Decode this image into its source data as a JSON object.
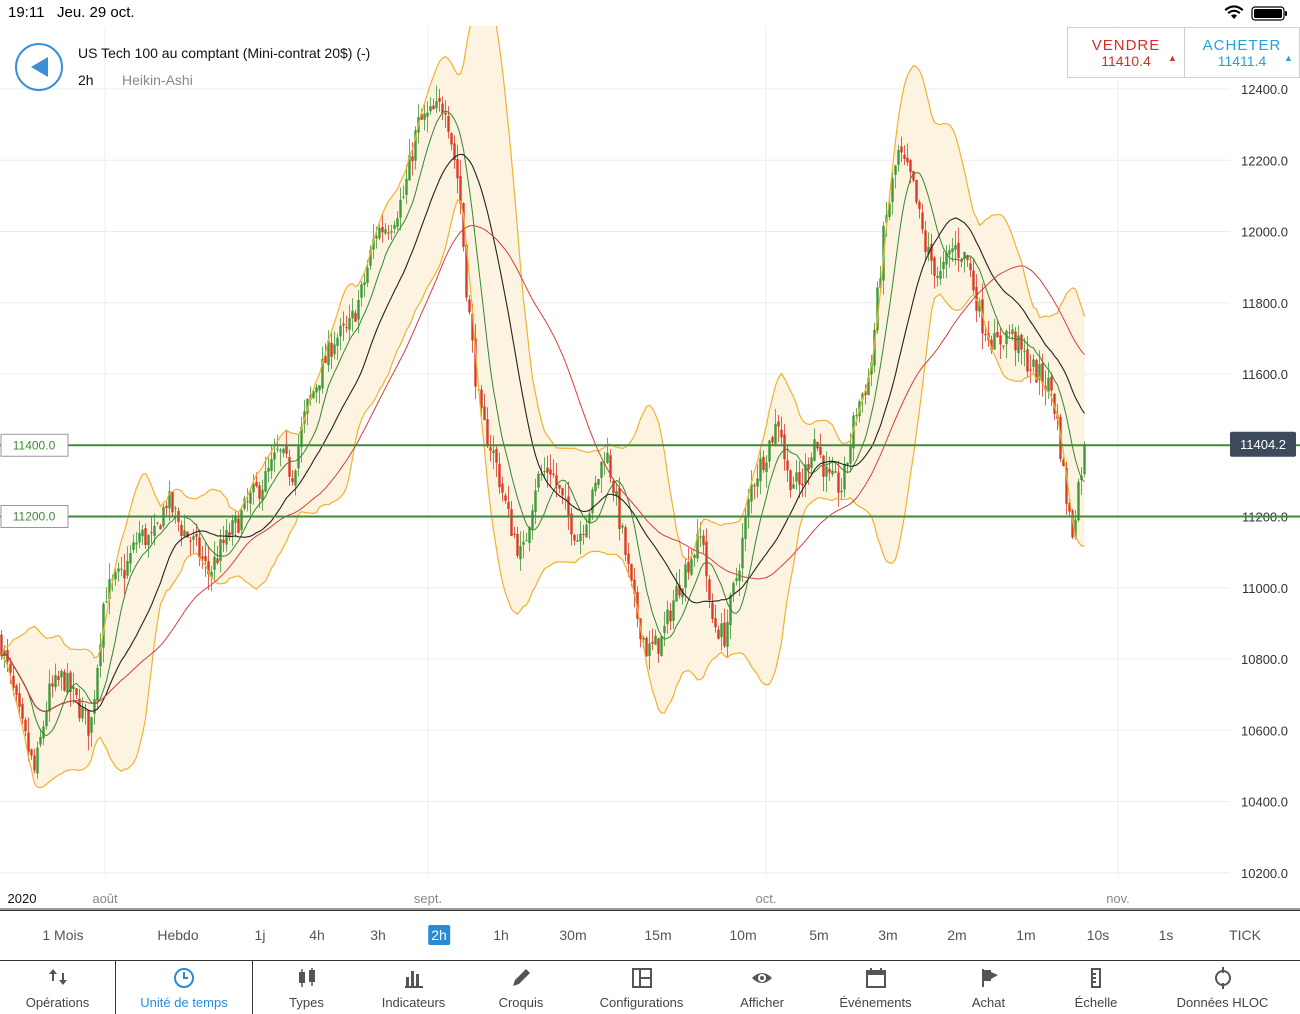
{
  "status": {
    "time": "19:11",
    "date": "Jeu. 29 oct."
  },
  "header": {
    "instrument": "US Tech 100 au comptant (Mini-contrat 20$) (-)",
    "timeframe": "2h",
    "chart_type": "Heikin-Ashi"
  },
  "trade": {
    "sell_label": "VENDRE",
    "sell_price": "11410.4",
    "buy_label": "ACHETER",
    "buy_price": "11411.4"
  },
  "colors": {
    "accent": "#2a8ad6",
    "sell": "#d22f27",
    "buy": "#2a9fd8",
    "up": "#3f9a3a",
    "down": "#d93a26",
    "band": "#f2b131"
  },
  "chart_data": {
    "type": "line",
    "ylim": [
      10100,
      12560
    ],
    "y_ticks": [
      "12400.0",
      "12200.0",
      "12000.0",
      "11800.0",
      "11600.0",
      "11400.0",
      "11200.0",
      "11000.0",
      "10800.0",
      "10600.0",
      "10400.0",
      "10200.0"
    ],
    "x_labels": [
      "2020",
      "août",
      "sept.",
      "oct.",
      "nov."
    ],
    "current_price_label": "11404.2",
    "current_price": 11404.2,
    "horizontal_lines": [
      {
        "label": "11400.0",
        "value": 11400
      },
      {
        "label": "11200.0",
        "value": 11200
      }
    ],
    "series": [
      {
        "values": [
          [
            0,
            10860
          ],
          [
            3,
            10620
          ],
          [
            5,
            10480
          ],
          [
            7,
            10700
          ],
          [
            9,
            10750
          ],
          [
            11,
            10680
          ],
          [
            13,
            10600
          ],
          [
            15,
            10980
          ],
          [
            18,
            11050
          ],
          [
            20,
            11150
          ],
          [
            22,
            11130
          ],
          [
            24,
            11250
          ],
          [
            26,
            11170
          ],
          [
            28,
            11120
          ],
          [
            30,
            11040
          ],
          [
            32,
            11120
          ],
          [
            34,
            11180
          ],
          [
            36,
            11250
          ],
          [
            38,
            11300
          ],
          [
            40,
            11380
          ],
          [
            42,
            11320
          ],
          [
            44,
            11500
          ],
          [
            46,
            11600
          ],
          [
            48,
            11700
          ],
          [
            50,
            11720
          ],
          [
            52,
            11830
          ],
          [
            54,
            12000
          ],
          [
            56,
            12020
          ],
          [
            58,
            12100
          ],
          [
            60,
            12300
          ],
          [
            62,
            12330
          ],
          [
            64,
            12360
          ],
          [
            66,
            12120
          ],
          [
            67,
            11850
          ],
          [
            68,
            11650
          ],
          [
            69,
            11480
          ],
          [
            71,
            11370
          ],
          [
            73,
            11200
          ],
          [
            75,
            11080
          ],
          [
            77,
            11300
          ],
          [
            79,
            11340
          ],
          [
            81,
            11230
          ],
          [
            83,
            11140
          ],
          [
            85,
            11240
          ],
          [
            87,
            11390
          ],
          [
            88,
            11300
          ],
          [
            90,
            11080
          ],
          [
            91,
            10960
          ],
          [
            93,
            10820
          ],
          [
            95,
            10850
          ],
          [
            97,
            10980
          ],
          [
            99,
            11080
          ],
          [
            101,
            11150
          ],
          [
            102,
            10920
          ],
          [
            104,
            10860
          ],
          [
            106,
            11050
          ],
          [
            108,
            11290
          ],
          [
            110,
            11380
          ],
          [
            112,
            11480
          ],
          [
            113,
            11320
          ],
          [
            115,
            11280
          ],
          [
            117,
            11420
          ],
          [
            119,
            11300
          ],
          [
            121,
            11280
          ],
          [
            123,
            11500
          ],
          [
            125,
            11600
          ],
          [
            127,
            12000
          ],
          [
            129,
            12220
          ],
          [
            131,
            12140
          ],
          [
            133,
            11950
          ],
          [
            135,
            11870
          ],
          [
            137,
            11960
          ],
          [
            139,
            11920
          ],
          [
            141,
            11750
          ],
          [
            143,
            11680
          ],
          [
            145,
            11720
          ],
          [
            147,
            11650
          ],
          [
            149,
            11600
          ],
          [
            151,
            11560
          ],
          [
            152,
            11450
          ],
          [
            153,
            11280
          ],
          [
            154,
            11150
          ],
          [
            155,
            11300
          ],
          [
            156,
            11410
          ]
        ]
      }
    ]
  },
  "timeframes": {
    "items": [
      "1 Mois",
      "Hebdo",
      "1j",
      "4h",
      "3h",
      "2h",
      "1h",
      "30m",
      "15m",
      "10m",
      "5m",
      "3m",
      "2m",
      "1m",
      "10s",
      "1s",
      "TICK"
    ],
    "active": "2h"
  },
  "toolbar": {
    "items": [
      {
        "label": "Opérations",
        "icon": "arrows-icon"
      },
      {
        "label": "Unité de temps",
        "icon": "clock-icon"
      },
      {
        "label": "Types",
        "icon": "candles-icon"
      },
      {
        "label": "Indicateurs",
        "icon": "bars-icon"
      },
      {
        "label": "Croquis",
        "icon": "pencil-icon"
      },
      {
        "label": "Configurations",
        "icon": "layout-icon"
      },
      {
        "label": "Afficher",
        "icon": "eye-icon"
      },
      {
        "label": "Événements",
        "icon": "calendar-icon"
      },
      {
        "label": "Achat",
        "icon": "flag-icon"
      },
      {
        "label": "Échelle",
        "icon": "scale-icon"
      },
      {
        "label": "Données HLOC",
        "icon": "crosshair-icon"
      }
    ],
    "active": "Unité de temps"
  }
}
